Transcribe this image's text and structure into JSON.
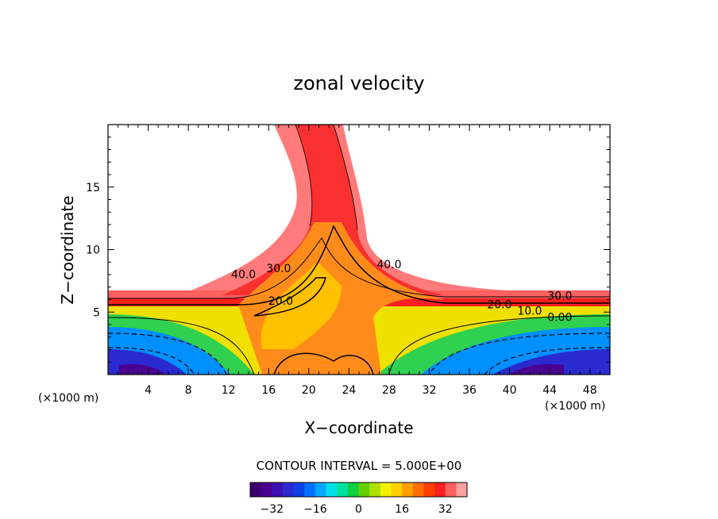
{
  "chart_data": {
    "type": "filled-contour",
    "title": "zonal velocity",
    "xlabel": "X−coordinate",
    "ylabel": "Z−coordinate",
    "x_unit_label_left": "(×1000 m)",
    "x_unit_label_right": "(×1000 m)",
    "xlim": [
      0,
      50
    ],
    "ylim": [
      0,
      20
    ],
    "x_ticks": [
      4,
      8,
      12,
      16,
      20,
      24,
      28,
      32,
      36,
      40,
      44,
      48
    ],
    "x_tick_labels": [
      "4",
      "8",
      "12",
      "16",
      "20",
      "24",
      "28",
      "32",
      "36",
      "40",
      "44",
      "48"
    ],
    "y_ticks": [
      5,
      10,
      15
    ],
    "y_tick_labels": [
      "5",
      "10",
      "15"
    ],
    "contour_interval_text": "CONTOUR INTERVAL = 5.000E+00",
    "contour_labels": [
      {
        "text": "40.0",
        "x": 13.5,
        "z": 7.7
      },
      {
        "text": "30.0",
        "x": 17.0,
        "z": 8.2
      },
      {
        "text": "20.0",
        "x": 17.2,
        "z": 5.6
      },
      {
        "text": "40.0",
        "x": 28.0,
        "z": 8.5
      },
      {
        "text": "20.0",
        "x": 39.0,
        "z": 5.3
      },
      {
        "text": "30.0",
        "x": 45.0,
        "z": 6.0
      },
      {
        "text": "10.0",
        "x": 42.0,
        "z": 4.8
      },
      {
        "text": "0.00",
        "x": 45.0,
        "z": 4.3
      }
    ],
    "colorbar": {
      "min": -40,
      "max": 40,
      "tick_values": [
        -32,
        -16,
        0,
        16,
        32
      ],
      "tick_labels": [
        "−32",
        "−16",
        "0",
        "16",
        "32"
      ],
      "colors": [
        "#3d0070",
        "#4a0090",
        "#3c10b0",
        "#2a2ad0",
        "#1040e8",
        "#0070ff",
        "#00a8ff",
        "#00e0e8",
        "#00e0a0",
        "#10d040",
        "#60d000",
        "#b0e000",
        "#f0f000",
        "#ffd000",
        "#ffa000",
        "#ff7000",
        "#ff4000",
        "#f82020",
        "#ff6060",
        "#ffa0a0"
      ]
    }
  }
}
